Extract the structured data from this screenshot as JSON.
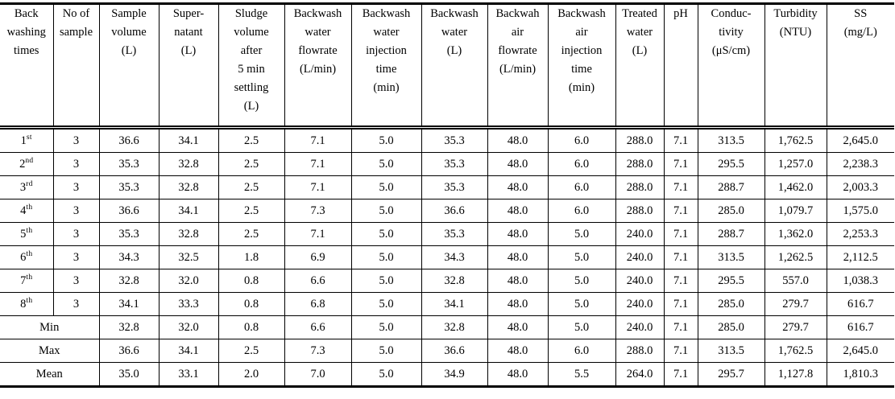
{
  "chart_data": {
    "type": "table",
    "columns": [
      "Back\nwashing\ntimes",
      "No of\nsample",
      "Sample\nvolume\n(L)",
      "Super-\nnatant\n(L)",
      "Sludge\nvolume\nafter\n5 min\nsettling\n(L)",
      "Backwash\nwater\nflowrate\n(L/min)",
      "Backwash\nwater\ninjection\ntime\n(min)",
      "Backwash\nwater\n(L)",
      "Backwah\nair\nflowrate\n(L/min)",
      "Backwash\nair\ninjection\ntime\n(min)",
      "Treated\nwater\n(L)",
      "pH",
      "Conduc-\ntivity\n(μS/cm)",
      "Turbidity\n(NTU)",
      "SS\n(mg/L)"
    ],
    "rows": [
      {
        "ordinal": "1",
        "suffix": "st",
        "values": [
          "3",
          "36.6",
          "34.1",
          "2.5",
          "7.1",
          "5.0",
          "35.3",
          "48.0",
          "6.0",
          "288.0",
          "7.1",
          "313.5",
          "1,762.5",
          "2,645.0"
        ]
      },
      {
        "ordinal": "2",
        "suffix": "nd",
        "values": [
          "3",
          "35.3",
          "32.8",
          "2.5",
          "7.1",
          "5.0",
          "35.3",
          "48.0",
          "6.0",
          "288.0",
          "7.1",
          "295.5",
          "1,257.0",
          "2,238.3"
        ]
      },
      {
        "ordinal": "3",
        "suffix": "rd",
        "values": [
          "3",
          "35.3",
          "32.8",
          "2.5",
          "7.1",
          "5.0",
          "35.3",
          "48.0",
          "6.0",
          "288.0",
          "7.1",
          "288.7",
          "1,462.0",
          "2,003.3"
        ]
      },
      {
        "ordinal": "4",
        "suffix": "th",
        "values": [
          "3",
          "36.6",
          "34.1",
          "2.5",
          "7.3",
          "5.0",
          "36.6",
          "48.0",
          "6.0",
          "288.0",
          "7.1",
          "285.0",
          "1,079.7",
          "1,575.0"
        ]
      },
      {
        "ordinal": "5",
        "suffix": "th",
        "values": [
          "3",
          "35.3",
          "32.8",
          "2.5",
          "7.1",
          "5.0",
          "35.3",
          "48.0",
          "5.0",
          "240.0",
          "7.1",
          "288.7",
          "1,362.0",
          "2,253.3"
        ]
      },
      {
        "ordinal": "6",
        "suffix": "th",
        "values": [
          "3",
          "34.3",
          "32.5",
          "1.8",
          "6.9",
          "5.0",
          "34.3",
          "48.0",
          "5.0",
          "240.0",
          "7.1",
          "313.5",
          "1,262.5",
          "2,112.5"
        ]
      },
      {
        "ordinal": "7",
        "suffix": "th",
        "values": [
          "3",
          "32.8",
          "32.0",
          "0.8",
          "6.6",
          "5.0",
          "32.8",
          "48.0",
          "5.0",
          "240.0",
          "7.1",
          "295.5",
          "557.0",
          "1,038.3"
        ]
      },
      {
        "ordinal": "8",
        "suffix": "th",
        "values": [
          "3",
          "34.1",
          "33.3",
          "0.8",
          "6.8",
          "5.0",
          "34.1",
          "48.0",
          "5.0",
          "240.0",
          "7.1",
          "285.0",
          "279.7",
          "616.7"
        ]
      }
    ],
    "summary_rows": [
      {
        "label": "Min",
        "values": [
          "32.8",
          "32.0",
          "0.8",
          "6.6",
          "5.0",
          "32.8",
          "48.0",
          "5.0",
          "240.0",
          "7.1",
          "285.0",
          "279.7",
          "616.7"
        ]
      },
      {
        "label": "Max",
        "values": [
          "36.6",
          "34.1",
          "2.5",
          "7.3",
          "5.0",
          "36.6",
          "48.0",
          "6.0",
          "288.0",
          "7.1",
          "313.5",
          "1,762.5",
          "2,645.0"
        ]
      },
      {
        "label": "Mean",
        "values": [
          "35.0",
          "33.1",
          "2.0",
          "7.0",
          "5.0",
          "34.9",
          "48.0",
          "5.5",
          "264.0",
          "7.1",
          "295.7",
          "1,127.8",
          "1,810.3"
        ]
      }
    ]
  }
}
